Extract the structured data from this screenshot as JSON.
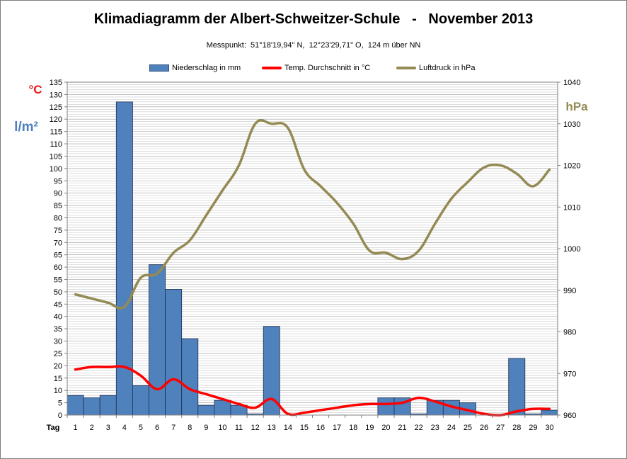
{
  "title": "Klimadiagramm der Albert-Schweitzer-Schule   -   November 2013",
  "subtitle": "Messpunkt:  51°18'19,94\" N,  12°23'29,71\" O,  124 m über NN",
  "colors": {
    "precip": "#4f81bd",
    "temp": "#ff0000",
    "pressure": "#948a54",
    "unit_temp": "#e8171c",
    "unit_precip": "#4f81bd",
    "unit_pressure": "#948a54"
  },
  "units": {
    "temp": "°C",
    "precip": "l/m²",
    "pressure": "hPa",
    "x": "Tag"
  },
  "chart_data": {
    "type": "bar",
    "title": "Klimadiagramm der Albert-Schweitzer-Schule   -   November 2013",
    "xlabel": "Tag",
    "categories": [
      "1",
      "2",
      "3",
      "4",
      "5",
      "6",
      "7",
      "8",
      "9",
      "10",
      "11",
      "12",
      "13",
      "14",
      "15",
      "16",
      "17",
      "18",
      "19",
      "20",
      "21",
      "22",
      "23",
      "24",
      "25",
      "26",
      "27",
      "28",
      "29",
      "30"
    ],
    "left_axis": {
      "labels": [
        "°C",
        "l/m²"
      ],
      "ylim": [
        0,
        135
      ],
      "step": 5
    },
    "right_axis": {
      "label": "hPa",
      "ylim": [
        960,
        1040
      ],
      "step": 10
    },
    "legend_position": "top",
    "grid": true,
    "series": [
      {
        "name": "Niederschlag in mm",
        "kind": "bar",
        "axis": "left",
        "values": [
          8,
          7,
          8,
          127,
          12,
          61,
          51,
          31,
          4,
          6,
          4,
          0.5,
          36,
          0,
          0,
          0,
          0,
          0,
          0,
          7,
          7,
          0.5,
          6,
          6,
          5,
          0,
          0,
          23,
          0.5,
          2
        ]
      },
      {
        "name": "Temp. Durchschnitt in °C",
        "kind": "line",
        "axis": "left",
        "values": [
          18.5,
          19.5,
          19.5,
          19.5,
          16,
          10.5,
          14.5,
          10.5,
          8.5,
          6.5,
          4.5,
          3,
          6.5,
          0.5,
          1,
          2,
          3,
          4,
          4.5,
          4.5,
          5,
          7,
          5.5,
          3.5,
          2,
          0.5,
          0,
          1.5,
          2.5,
          2.5
        ]
      },
      {
        "name": "Luftdruck in hPa",
        "kind": "line",
        "axis": "right",
        "values": [
          989,
          988,
          987,
          986,
          993,
          994,
          999,
          1002,
          1008,
          1014,
          1020,
          1030,
          1030,
          1029,
          1019,
          1015,
          1011,
          1006,
          999.5,
          999,
          997.5,
          999.5,
          1006,
          1012,
          1016,
          1019.5,
          1020,
          1018,
          1015,
          1019
        ]
      }
    ]
  }
}
